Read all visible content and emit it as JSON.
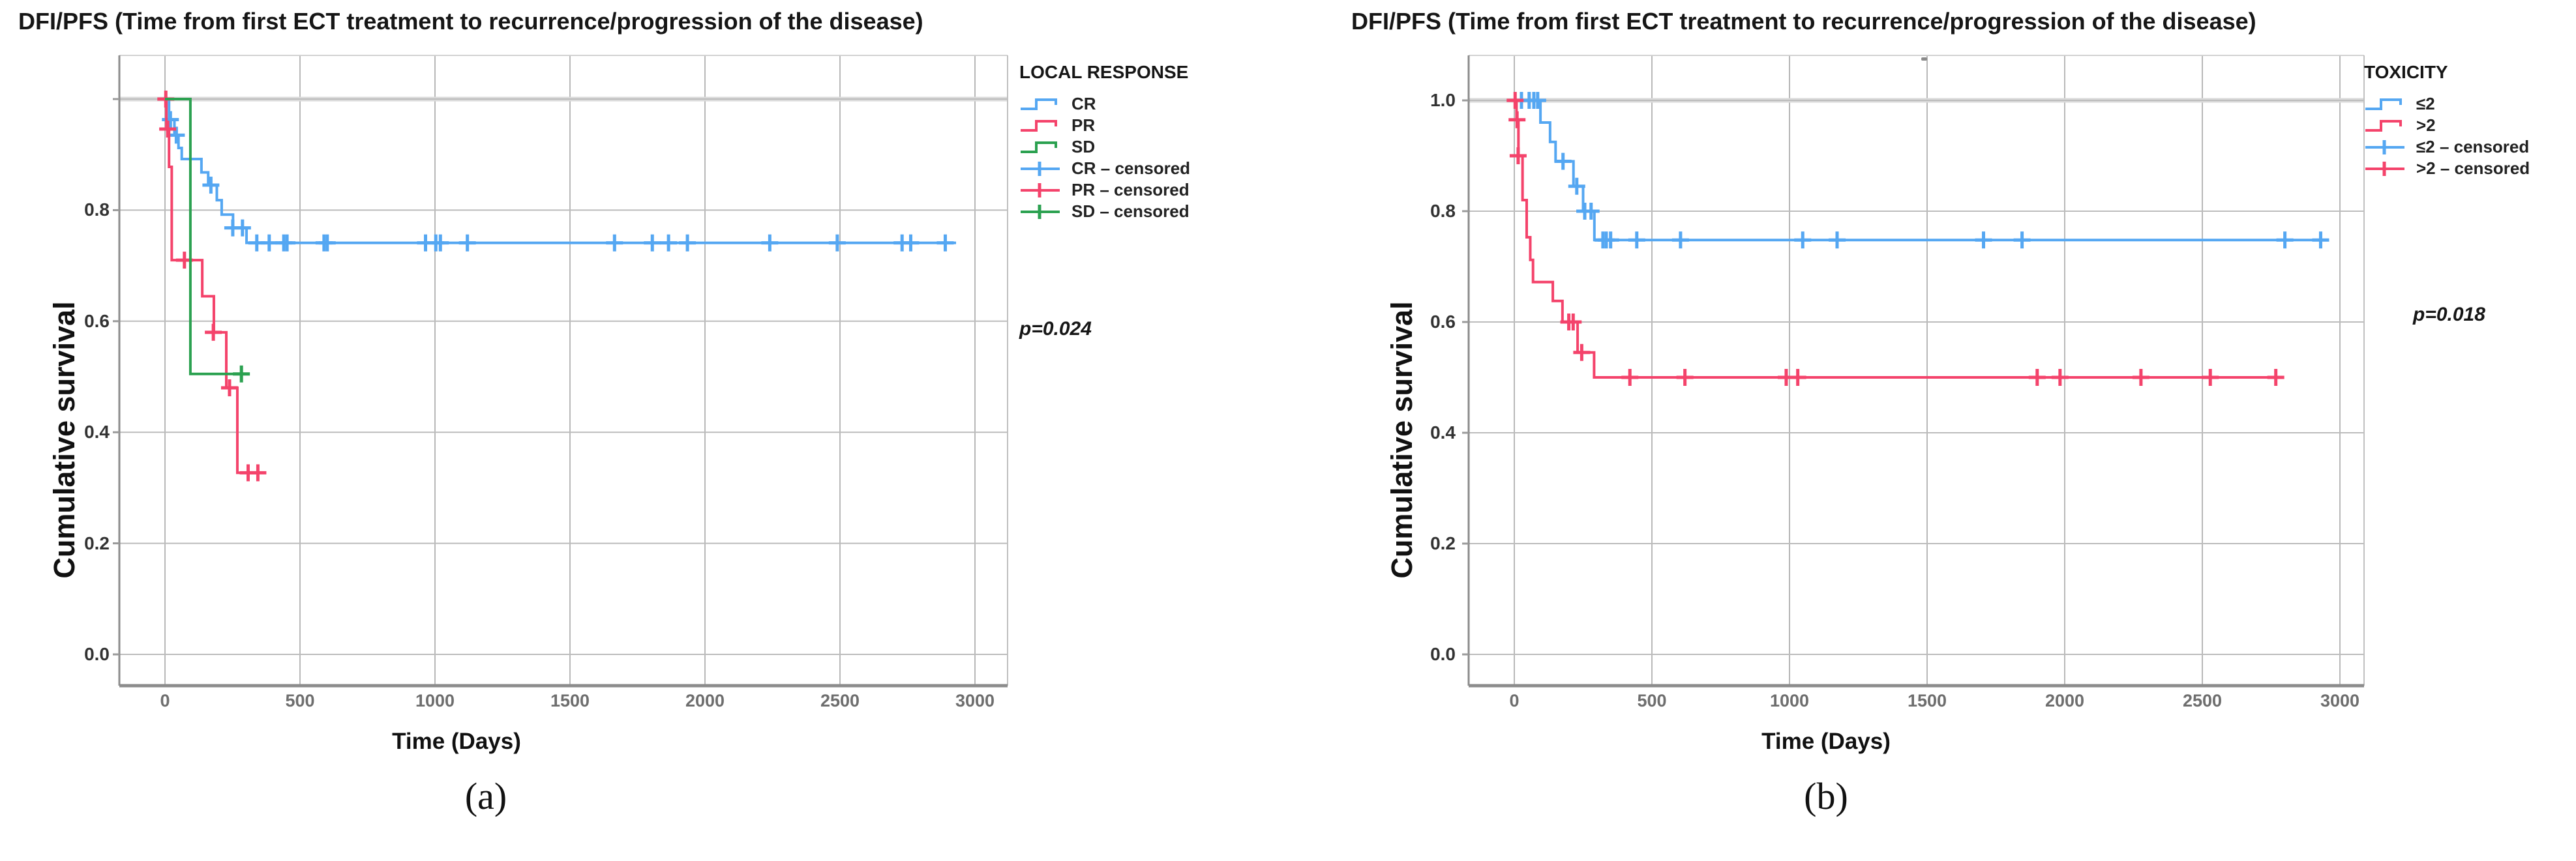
{
  "chart_data": [
    {
      "type": "line",
      "subtype": "kaplan-meier-step",
      "panel": "a",
      "title": "DFI/PFS  (Time from first ECT treatment to recurrence/progression of the disease)",
      "xlabel": "Time (Days)",
      "ylabel": "Cumulative survival",
      "caption": "(a)",
      "legend_title": "LOCAL RESPONSE",
      "legend_position": "right-top",
      "p_value": "p=0.024",
      "grid": true,
      "xlim": [
        -170,
        3120
      ],
      "ylim": [
        -0.06,
        1.08
      ],
      "x_ticks": [
        "0",
        "500",
        "1000",
        "1500",
        "2000",
        "2500",
        "3000"
      ],
      "x_tick_values": [
        0,
        500,
        1000,
        1500,
        2000,
        2500,
        3000
      ],
      "y_tick_values": [
        1.0,
        0.8,
        0.6,
        0.4,
        0.2,
        0.0
      ],
      "y_tick_labels": [
        "",
        "0.8",
        "0.6",
        "0.4",
        "0.2",
        "0.0"
      ],
      "series": [
        {
          "name": "CR",
          "censored_name": "CR – censored",
          "color": "#55a7f2",
          "steps": [
            [
              0,
              1.0
            ],
            [
              15,
              0.963
            ],
            [
              35,
              0.935
            ],
            [
              50,
              0.912
            ],
            [
              62,
              0.892
            ],
            [
              135,
              0.868
            ],
            [
              160,
              0.845
            ],
            [
              192,
              0.818
            ],
            [
              210,
              0.792
            ],
            [
              252,
              0.768
            ],
            [
              302,
              0.741
            ]
          ],
          "end": 2930,
          "censored": [
            [
              20,
              0.963
            ],
            [
              42,
              0.935
            ],
            [
              170,
              0.845
            ],
            [
              251,
              0.768
            ],
            [
              287,
              0.768
            ],
            [
              340,
              0.741
            ],
            [
              386,
              0.741
            ],
            [
              440,
              0.741
            ],
            [
              452,
              0.741
            ],
            [
              589,
              0.741
            ],
            [
              601,
              0.741
            ],
            [
              965,
              0.741
            ],
            [
              1003,
              0.741
            ],
            [
              1020,
              0.741
            ],
            [
              1120,
              0.741
            ],
            [
              1665,
              0.741
            ],
            [
              1805,
              0.741
            ],
            [
              1865,
              0.741
            ],
            [
              1935,
              0.741
            ],
            [
              2240,
              0.741
            ],
            [
              2490,
              0.741
            ],
            [
              2730,
              0.741
            ],
            [
              2762,
              0.741
            ],
            [
              2890,
              0.741
            ]
          ]
        },
        {
          "name": "PR",
          "censored_name": "PR – censored",
          "color": "#f4436b",
          "steps": [
            [
              0,
              1.0
            ],
            [
              5,
              0.946
            ],
            [
              15,
              0.878
            ],
            [
              25,
              0.71
            ],
            [
              138,
              0.645
            ],
            [
              181,
              0.58
            ],
            [
              227,
              0.48
            ],
            [
              268,
              0.327
            ]
          ],
          "end": 372,
          "censored": [
            [
              3,
              1.0
            ],
            [
              10,
              0.946
            ],
            [
              72,
              0.71
            ],
            [
              179,
              0.58
            ],
            [
              239,
              0.48
            ],
            [
              308,
              0.327
            ],
            [
              344,
              0.327
            ]
          ]
        },
        {
          "name": "SD",
          "censored_name": "SD – censored",
          "color": "#2ba150",
          "steps": [
            [
              0,
              1.0
            ],
            [
              94,
              0.505
            ]
          ],
          "end": 307,
          "censored": [
            [
              283,
              0.505
            ]
          ]
        }
      ]
    },
    {
      "type": "line",
      "subtype": "kaplan-meier-step",
      "panel": "b",
      "title": "DFI/PFS  (Time from first ECT treatment to recurrence/progression of the disease)",
      "xlabel": "Time (Days)",
      "ylabel": "Cumulative survival",
      "caption": "(b)",
      "legend_title": "TOXICITY",
      "legend_position": "right-top",
      "p_value": "p=0.018",
      "grid": true,
      "xlim": [
        -170,
        3090
      ],
      "ylim": [
        -0.06,
        1.08
      ],
      "x_ticks": [
        "0",
        "500",
        "1000",
        "1500",
        "2000",
        "2500",
        "3000"
      ],
      "x_tick_values": [
        0,
        500,
        1000,
        1500,
        2000,
        2500,
        3000
      ],
      "y_tick_values": [
        1.0,
        0.8,
        0.6,
        0.4,
        0.2,
        0.0
      ],
      "y_tick_labels": [
        "1.0",
        "0.8",
        "0.6",
        "0.4",
        "0.2",
        "0.0"
      ],
      "series": [
        {
          "name": "≤2",
          "censored_name": "≤2 – censored",
          "color": "#55a7f2",
          "steps": [
            [
              0,
              1.0
            ],
            [
              95,
              0.96
            ],
            [
              130,
              0.925
            ],
            [
              150,
              0.89
            ],
            [
              215,
              0.845
            ],
            [
              250,
              0.8
            ],
            [
              291,
              0.748
            ]
          ],
          "end": 2930,
          "censored": [
            [
              26,
              1.0
            ],
            [
              54,
              1.0
            ],
            [
              71,
              1.0
            ],
            [
              85,
              1.0
            ],
            [
              177,
              0.89
            ],
            [
              227,
              0.845
            ],
            [
              256,
              0.8
            ],
            [
              279,
              0.8
            ],
            [
              322,
              0.748
            ],
            [
              334,
              0.748
            ],
            [
              350,
              0.748
            ],
            [
              445,
              0.748
            ],
            [
              604,
              0.748
            ],
            [
              1048,
              0.748
            ],
            [
              1173,
              0.748
            ],
            [
              1705,
              0.748
            ],
            [
              1845,
              0.748
            ],
            [
              2800,
              0.748
            ],
            [
              2930,
              0.748
            ]
          ]
        },
        {
          "name": ">2",
          "censored_name": ">2 – censored",
          "color": "#f4436b",
          "steps": [
            [
              0,
              1.0
            ],
            [
              8,
              0.965
            ],
            [
              15,
              0.9
            ],
            [
              30,
              0.82
            ],
            [
              45,
              0.753
            ],
            [
              58,
              0.712
            ],
            [
              68,
              0.672
            ],
            [
              140,
              0.638
            ],
            [
              175,
              0.6
            ],
            [
              230,
              0.545
            ],
            [
              290,
              0.5
            ]
          ],
          "end": 2767,
          "censored": [
            [
              3,
              1.0
            ],
            [
              10,
              0.965
            ],
            [
              14,
              0.9
            ],
            [
              198,
              0.6
            ],
            [
              214,
              0.6
            ],
            [
              245,
              0.545
            ],
            [
              420,
              0.5
            ],
            [
              620,
              0.5
            ],
            [
              988,
              0.5
            ],
            [
              1030,
              0.5
            ],
            [
              1900,
              0.5
            ],
            [
              1983,
              0.5
            ],
            [
              2277,
              0.5
            ],
            [
              2529,
              0.5
            ],
            [
              2767,
              0.5
            ]
          ]
        }
      ]
    }
  ]
}
